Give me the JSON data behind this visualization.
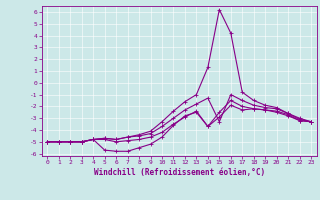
{
  "xlabel": "Windchill (Refroidissement éolien,°C)",
  "bg_color": "#cce8e8",
  "line_color": "#880088",
  "grid_color": "#ffffff",
  "xlim": [
    -0.5,
    23.5
  ],
  "ylim": [
    -6.2,
    6.5
  ],
  "xticks": [
    0,
    1,
    2,
    3,
    4,
    5,
    6,
    7,
    8,
    9,
    10,
    11,
    12,
    13,
    14,
    15,
    16,
    17,
    18,
    19,
    20,
    21,
    22,
    23
  ],
  "yticks": [
    -6,
    -5,
    -4,
    -3,
    -2,
    -1,
    0,
    1,
    2,
    3,
    4,
    5,
    6
  ],
  "line1_x": [
    0,
    1,
    2,
    3,
    4,
    5,
    6,
    7,
    8,
    9,
    10,
    11,
    12,
    13,
    14,
    15,
    16,
    17,
    18,
    19,
    20,
    21,
    22,
    23
  ],
  "line1_y": [
    -5,
    -5,
    -5,
    -5.0,
    -4.8,
    -5.7,
    -5.8,
    -5.8,
    -5.5,
    -5.2,
    -4.6,
    -3.6,
    -2.8,
    -2.5,
    -3.7,
    -2.9,
    -1.9,
    -2.3,
    -2.2,
    -2.3,
    -2.5,
    -2.8,
    -3.2,
    -3.3
  ],
  "line2_x": [
    0,
    1,
    2,
    3,
    4,
    5,
    6,
    7,
    8,
    9,
    10,
    11,
    12,
    13,
    14,
    15,
    16,
    17,
    18,
    19,
    20,
    21,
    22,
    23
  ],
  "line2_y": [
    -5,
    -5,
    -5,
    -5,
    -4.8,
    -4.8,
    -5.0,
    -4.9,
    -4.8,
    -4.6,
    -4.2,
    -3.5,
    -2.9,
    -2.4,
    -3.7,
    -2.5,
    -1.5,
    -2.0,
    -2.2,
    -2.3,
    -2.4,
    -2.7,
    -3.2,
    -3.3
  ],
  "line3_x": [
    0,
    1,
    2,
    3,
    4,
    5,
    6,
    7,
    8,
    9,
    10,
    11,
    12,
    13,
    14,
    15,
    16,
    17,
    18,
    19,
    20,
    21,
    22,
    23
  ],
  "line3_y": [
    -5,
    -5,
    -5,
    -5,
    -4.8,
    -4.7,
    -4.8,
    -4.6,
    -4.5,
    -4.3,
    -3.7,
    -3.0,
    -2.3,
    -1.8,
    -1.3,
    -3.3,
    -1.0,
    -1.5,
    -1.9,
    -2.1,
    -2.2,
    -2.6,
    -3.1,
    -3.3
  ],
  "line4_x": [
    0,
    1,
    2,
    3,
    4,
    5,
    6,
    7,
    8,
    9,
    10,
    11,
    12,
    13,
    14,
    15,
    16,
    17,
    18,
    19,
    20,
    21,
    22,
    23
  ],
  "line4_y": [
    -5,
    -5,
    -5,
    -5,
    -4.8,
    -4.7,
    -4.8,
    -4.6,
    -4.4,
    -4.1,
    -3.3,
    -2.4,
    -1.6,
    -1.0,
    1.3,
    6.2,
    4.2,
    -0.8,
    -1.5,
    -1.9,
    -2.1,
    -2.6,
    -3.0,
    -3.3
  ],
  "xlabel_fontsize": 5.5,
  "tick_fontsize": 4.5,
  "linewidth": 0.8,
  "markersize": 2.5
}
